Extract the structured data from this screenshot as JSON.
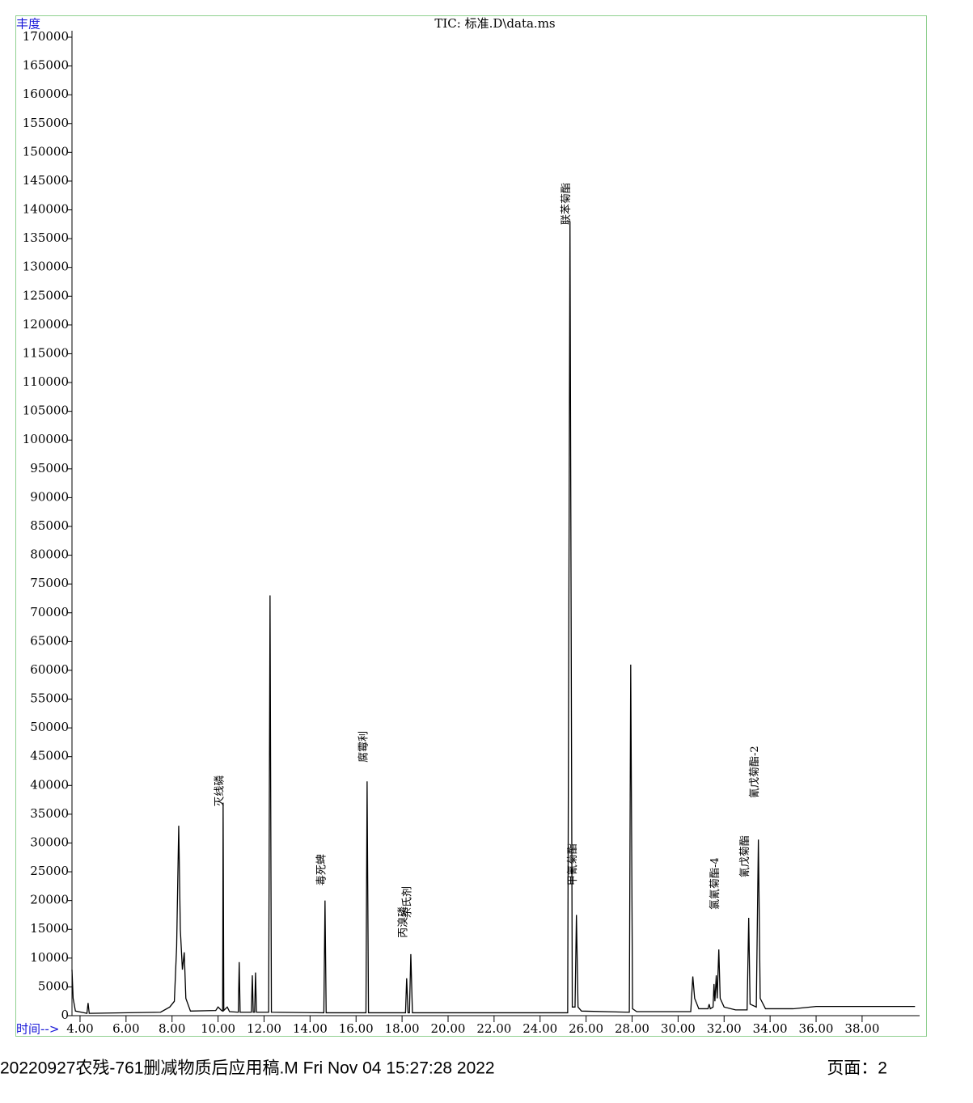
{
  "chart_data": {
    "type": "line",
    "title": "TIC: 标准.D\\data.ms",
    "y_label": "丰度",
    "x_label": "时间-->",
    "color": "#000000",
    "xlim": [
      3.65,
      40.5
    ],
    "ylim": [
      0,
      170000
    ],
    "xticks": [
      {
        "value": 4,
        "label": "4.00"
      },
      {
        "value": 6,
        "label": "6.00"
      },
      {
        "value": 8,
        "label": "8.00"
      },
      {
        "value": 10,
        "label": "10.00"
      },
      {
        "value": 12,
        "label": "12.00"
      },
      {
        "value": 14,
        "label": "14.00"
      },
      {
        "value": 16,
        "label": "16.00"
      },
      {
        "value": 18,
        "label": "18.00"
      },
      {
        "value": 20,
        "label": "20.00"
      },
      {
        "value": 22,
        "label": "22.00"
      },
      {
        "value": 24,
        "label": "24.00"
      },
      {
        "value": 26,
        "label": "26.00"
      },
      {
        "value": 28,
        "label": "28.00"
      },
      {
        "value": 30,
        "label": "30.00"
      },
      {
        "value": 32,
        "label": "32.00"
      },
      {
        "value": 34,
        "label": "34.00"
      },
      {
        "value": 36,
        "label": "36.00"
      },
      {
        "value": 38,
        "label": "38.00"
      }
    ],
    "yticks": [
      0,
      5000,
      10000,
      15000,
      20000,
      25000,
      30000,
      35000,
      40000,
      45000,
      50000,
      55000,
      60000,
      65000,
      70000,
      75000,
      80000,
      85000,
      90000,
      95000,
      100000,
      105000,
      110000,
      115000,
      120000,
      125000,
      130000,
      135000,
      140000,
      145000,
      150000,
      155000,
      160000,
      165000,
      170000
    ],
    "x": [
      3.65,
      3.7,
      3.8,
      4.3,
      4.35,
      4.4,
      7.5,
      7.9,
      8.1,
      8.2,
      8.29,
      8.36,
      8.45,
      8.53,
      8.6,
      8.8,
      9.9,
      10.0,
      10.15,
      10.2,
      10.22,
      10.25,
      10.4,
      10.5,
      10.88,
      10.92,
      10.96,
      11.45,
      11.49,
      11.53,
      11.59,
      11.63,
      11.67,
      12.2,
      12.26,
      12.32,
      14.6,
      14.65,
      14.7,
      16.43,
      16.48,
      16.54,
      18.15,
      18.2,
      18.26,
      18.32,
      18.38,
      18.45,
      25.2,
      25.3,
      25.4,
      25.52,
      25.58,
      25.65,
      25.8,
      27.88,
      27.94,
      28.02,
      28.2,
      30.55,
      30.64,
      30.72,
      30.9,
      31.3,
      31.35,
      31.4,
      31.52,
      31.56,
      31.6,
      31.66,
      31.7,
      31.77,
      31.83,
      32.0,
      32.5,
      33.0,
      33.07,
      33.13,
      33.4,
      33.49,
      33.57,
      33.8,
      35.0,
      36.0,
      40.3
    ],
    "y": [
      8000,
      3000,
      800,
      400,
      2200,
      400,
      600,
      1500,
      2500,
      12000,
      33000,
      15000,
      8000,
      11000,
      3000,
      800,
      900,
      1500,
      900,
      800,
      37000,
      900,
      1500,
      700,
      600,
      9300,
      600,
      600,
      7000,
      600,
      600,
      7500,
      600,
      600,
      73000,
      600,
      500,
      20000,
      500,
      500,
      40700,
      500,
      500,
      6500,
      500,
      500,
      10700,
      500,
      500,
      138000,
      1500,
      1500,
      17500,
      1500,
      800,
      600,
      61000,
      1200,
      700,
      700,
      6800,
      3000,
      1200,
      1200,
      2000,
      1200,
      1500,
      5500,
      2500,
      7000,
      3000,
      11500,
      3000,
      1500,
      1000,
      1000,
      17000,
      2000,
      1500,
      30600,
      3000,
      1200,
      1200,
      1600,
      1600
    ],
    "annotations": [
      {
        "text": "灭线磷",
        "x": 10.22,
        "y": 36300
      },
      {
        "text": "毒死蜱",
        "x": 14.65,
        "y": 22600
      },
      {
        "text": "腐霉利",
        "x": 16.48,
        "y": 44000
      },
      {
        "text": "丙溴磷",
        "x": 18.2,
        "y": 13500
      },
      {
        "text": "杀氏剂",
        "x": 18.38,
        "y": 17000
      },
      {
        "text": "联苯菊酯",
        "x": 25.3,
        "y": 137400
      },
      {
        "text": "甲氰菊酯",
        "x": 25.58,
        "y": 22600
      },
      {
        "text": "氯氰菊酯-4",
        "x": 31.77,
        "y": 18400
      },
      {
        "text": "氰戊菊酯",
        "x": 33.07,
        "y": 24000
      },
      {
        "text": "氰戊菊酯-2",
        "x": 33.49,
        "y": 37800
      }
    ]
  },
  "footer": {
    "method": "20220927农残-761删减物质后应用稿.M Fri Nov 04 15:27:28 2022",
    "page": "页面：2"
  }
}
